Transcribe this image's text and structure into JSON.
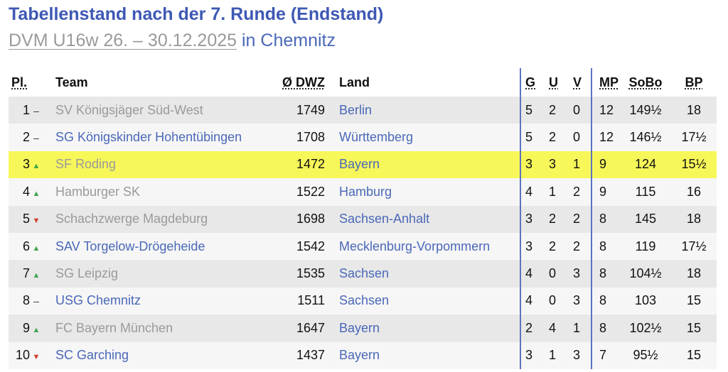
{
  "heading": {
    "title": "Tabellenstand nach der 7. Runde (Endstand)",
    "event": "DVM U16w 26. – 30.12.2025",
    "location": " in Chemnitz"
  },
  "columns": {
    "pl": "Pl.",
    "team": "Team",
    "dwz": "Ø DWZ",
    "land": "Land",
    "g": "G",
    "u": "U",
    "v": "V",
    "mp": "MP",
    "sobo": "SoBo",
    "bp": "BP"
  },
  "rows": [
    {
      "pl": "1",
      "trend": "same",
      "team": "SV Königsjäger Süd-West",
      "team_link": false,
      "dwz": "1749",
      "land": "Berlin",
      "g": "5",
      "u": "2",
      "v": "0",
      "mp": "12",
      "sobo": "149½",
      "bp": "18",
      "highlight": false
    },
    {
      "pl": "2",
      "trend": "same",
      "team": "SG Königskinder Hohentübingen",
      "team_link": true,
      "dwz": "1708",
      "land": "Württemberg",
      "g": "5",
      "u": "2",
      "v": "0",
      "mp": "12",
      "sobo": "146½",
      "bp": "17½",
      "highlight": false
    },
    {
      "pl": "3",
      "trend": "up",
      "team": "SF Roding",
      "team_link": false,
      "dwz": "1472",
      "land": "Bayern",
      "g": "3",
      "u": "3",
      "v": "1",
      "mp": "9",
      "sobo": "124",
      "bp": "15½",
      "highlight": true
    },
    {
      "pl": "4",
      "trend": "up",
      "team": "Hamburger SK",
      "team_link": false,
      "dwz": "1522",
      "land": "Hamburg",
      "g": "4",
      "u": "1",
      "v": "2",
      "mp": "9",
      "sobo": "115",
      "bp": "16",
      "highlight": false
    },
    {
      "pl": "5",
      "trend": "down",
      "team": "Schachzwerge Magdeburg",
      "team_link": false,
      "dwz": "1698",
      "land": "Sachsen-Anhalt",
      "g": "3",
      "u": "2",
      "v": "2",
      "mp": "8",
      "sobo": "145",
      "bp": "18",
      "highlight": false
    },
    {
      "pl": "6",
      "trend": "up",
      "team": "SAV Torgelow-Drögeheide",
      "team_link": true,
      "dwz": "1542",
      "land": "Mecklenburg-Vorpommern",
      "g": "3",
      "u": "2",
      "v": "2",
      "mp": "8",
      "sobo": "119",
      "bp": "17½",
      "highlight": false
    },
    {
      "pl": "7",
      "trend": "up",
      "team": "SG Leipzig",
      "team_link": false,
      "dwz": "1535",
      "land": "Sachsen",
      "g": "4",
      "u": "0",
      "v": "3",
      "mp": "8",
      "sobo": "104½",
      "bp": "18",
      "highlight": false
    },
    {
      "pl": "8",
      "trend": "same",
      "team": "USG Chemnitz",
      "team_link": true,
      "dwz": "1511",
      "land": "Sachsen",
      "g": "4",
      "u": "0",
      "v": "3",
      "mp": "8",
      "sobo": "103",
      "bp": "15",
      "highlight": false
    },
    {
      "pl": "9",
      "trend": "up",
      "team": "FC Bayern München",
      "team_link": false,
      "dwz": "1647",
      "land": "Bayern",
      "g": "2",
      "u": "4",
      "v": "1",
      "mp": "8",
      "sobo": "102½",
      "bp": "15",
      "highlight": false
    },
    {
      "pl": "10",
      "trend": "down",
      "team": "SC Garching",
      "team_link": true,
      "dwz": "1437",
      "land": "Bayern",
      "g": "3",
      "u": "1",
      "v": "3",
      "mp": "7",
      "sobo": "95½",
      "bp": "15",
      "highlight": false
    }
  ],
  "trend_glyphs": {
    "up": "▲",
    "down": "▼",
    "same": "–"
  },
  "colors": {
    "accent": "#3e58b4",
    "link": "#4a68b8",
    "highlight": "#f7f75a",
    "up": "#3fa34d",
    "down": "#d23a2f"
  }
}
